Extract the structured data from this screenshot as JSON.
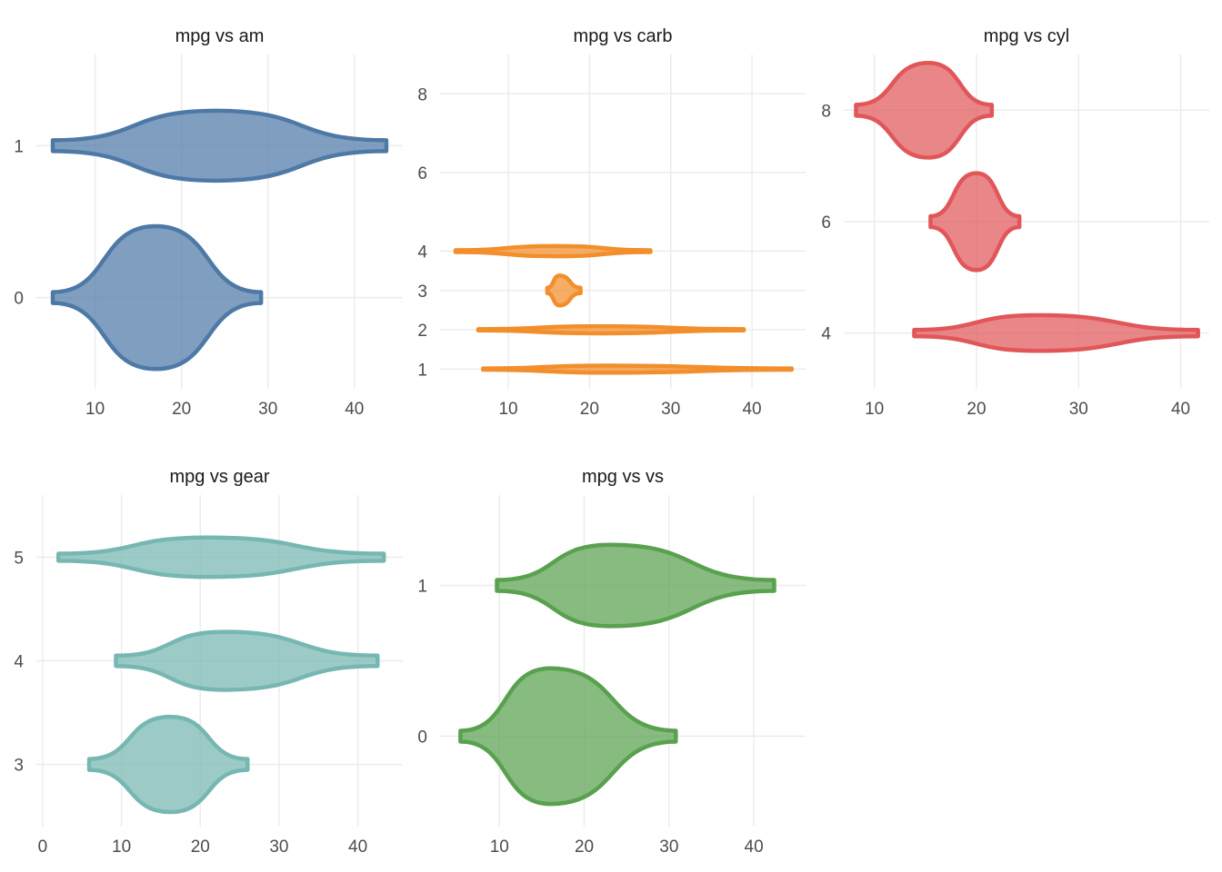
{
  "chart_data": [
    {
      "type": "violin",
      "title": "mpg vs am",
      "color": "#4e79a7",
      "xlim": [
        3.2,
        45.6
      ],
      "ylim": [
        -0.6,
        1.6
      ],
      "xticks": [
        10,
        20,
        30,
        40
      ],
      "yticks": [
        0,
        1
      ],
      "violins": [
        {
          "y": 0,
          "xmin": 5.1,
          "xmax": 29.2,
          "peak": 17,
          "halfwidth": 0.47
        },
        {
          "y": 1,
          "xmin": 5.1,
          "xmax": 43.7,
          "peak": 24,
          "halfwidth": 0.23
        }
      ]
    },
    {
      "type": "violin",
      "title": "mpg vs carb",
      "color": "#f28e2b",
      "xlim": [
        1.6,
        46.6
      ],
      "ylim": [
        0.5,
        9.0
      ],
      "xticks": [
        10,
        20,
        30,
        40
      ],
      "yticks": [
        1,
        2,
        3,
        4,
        6,
        8
      ],
      "violins": [
        {
          "y": 1,
          "xmin": 6.9,
          "xmax": 44.9,
          "peak": 22,
          "halfwidth": 0.09
        },
        {
          "y": 2,
          "xmin": 6.3,
          "xmax": 39.0,
          "peak": 21,
          "halfwidth": 0.09
        },
        {
          "y": 3,
          "xmin": 14.8,
          "xmax": 18.9,
          "peak": 16.3,
          "halfwidth": 0.38
        },
        {
          "y": 4,
          "xmin": 3.5,
          "xmax": 27.5,
          "peak": 16,
          "halfwidth": 0.13
        }
      ]
    },
    {
      "type": "violin",
      "title": "mpg vs cyl",
      "color": "#e15759",
      "xlim": [
        7.0,
        42.8
      ],
      "ylim": [
        3.0,
        9.0
      ],
      "xticks": [
        10,
        20,
        30,
        40
      ],
      "yticks": [
        4,
        6,
        8
      ],
      "violins": [
        {
          "y": 4,
          "xmin": 13.9,
          "xmax": 41.7,
          "peak": 26,
          "halfwidth": 0.32
        },
        {
          "y": 6,
          "xmin": 15.5,
          "xmax": 24.2,
          "peak": 20,
          "halfwidth": 0.87
        },
        {
          "y": 8,
          "xmin": 8.2,
          "xmax": 21.5,
          "peak": 15.3,
          "halfwidth": 0.85
        }
      ]
    },
    {
      "type": "violin",
      "title": "mpg vs gear",
      "color": "#76b7b2",
      "xlim": [
        -0.8,
        45.7
      ],
      "ylim": [
        2.4,
        5.6
      ],
      "xticks": [
        0,
        10,
        20,
        30,
        40
      ],
      "yticks": [
        3,
        4,
        5
      ],
      "violins": [
        {
          "y": 3,
          "xmin": 5.9,
          "xmax": 26.0,
          "peak": 16.2,
          "halfwidth": 0.46
        },
        {
          "y": 4,
          "xmin": 9.3,
          "xmax": 42.5,
          "peak": 23,
          "halfwidth": 0.28
        },
        {
          "y": 5,
          "xmin": 2.0,
          "xmax": 43.3,
          "peak": 21,
          "halfwidth": 0.19
        }
      ]
    },
    {
      "type": "violin",
      "title": "mpg vs vs",
      "color": "#59a14f",
      "xlim": [
        3.0,
        46.1
      ],
      "ylim": [
        -0.6,
        1.6
      ],
      "xticks": [
        10,
        20,
        30,
        40
      ],
      "yticks": [
        0,
        1
      ],
      "violins": [
        {
          "y": 0,
          "xmin": 5.4,
          "xmax": 30.8,
          "peak": 16,
          "halfwidth": 0.45
        },
        {
          "y": 1,
          "xmin": 9.7,
          "xmax": 42.4,
          "peak": 23,
          "halfwidth": 0.27
        }
      ]
    }
  ]
}
